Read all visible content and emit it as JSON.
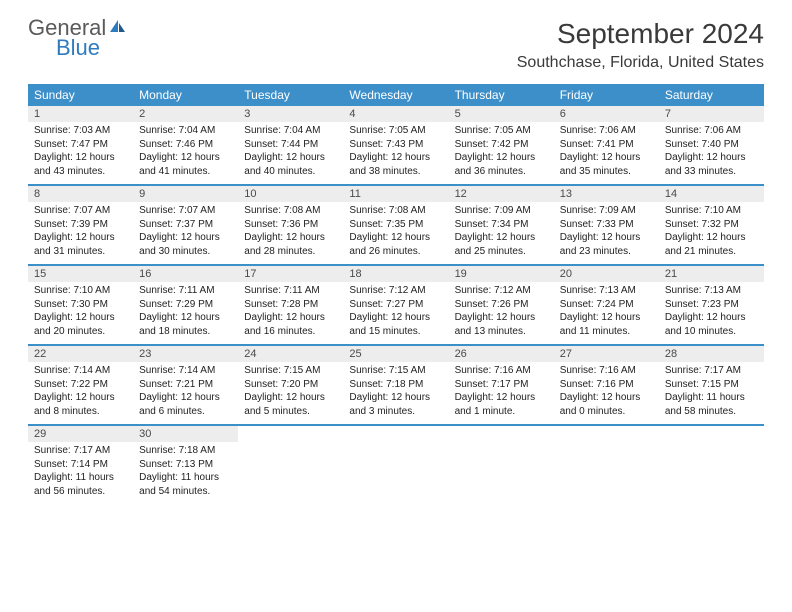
{
  "logo": {
    "general": "General",
    "blue": "Blue"
  },
  "title": "September 2024",
  "location": "Southchase, Florida, United States",
  "colors": {
    "header_bar": "#3d8fc9",
    "daynum_bg": "#ededed",
    "logo_gray": "#5a5a5a",
    "logo_blue": "#2f7bbf",
    "text": "#222222"
  },
  "dow": [
    "Sunday",
    "Monday",
    "Tuesday",
    "Wednesday",
    "Thursday",
    "Friday",
    "Saturday"
  ],
  "weeks": [
    [
      {
        "n": "1",
        "sr": "Sunrise: 7:03 AM",
        "ss": "Sunset: 7:47 PM",
        "d1": "Daylight: 12 hours",
        "d2": "and 43 minutes."
      },
      {
        "n": "2",
        "sr": "Sunrise: 7:04 AM",
        "ss": "Sunset: 7:46 PM",
        "d1": "Daylight: 12 hours",
        "d2": "and 41 minutes."
      },
      {
        "n": "3",
        "sr": "Sunrise: 7:04 AM",
        "ss": "Sunset: 7:44 PM",
        "d1": "Daylight: 12 hours",
        "d2": "and 40 minutes."
      },
      {
        "n": "4",
        "sr": "Sunrise: 7:05 AM",
        "ss": "Sunset: 7:43 PM",
        "d1": "Daylight: 12 hours",
        "d2": "and 38 minutes."
      },
      {
        "n": "5",
        "sr": "Sunrise: 7:05 AM",
        "ss": "Sunset: 7:42 PM",
        "d1": "Daylight: 12 hours",
        "d2": "and 36 minutes."
      },
      {
        "n": "6",
        "sr": "Sunrise: 7:06 AM",
        "ss": "Sunset: 7:41 PM",
        "d1": "Daylight: 12 hours",
        "d2": "and 35 minutes."
      },
      {
        "n": "7",
        "sr": "Sunrise: 7:06 AM",
        "ss": "Sunset: 7:40 PM",
        "d1": "Daylight: 12 hours",
        "d2": "and 33 minutes."
      }
    ],
    [
      {
        "n": "8",
        "sr": "Sunrise: 7:07 AM",
        "ss": "Sunset: 7:39 PM",
        "d1": "Daylight: 12 hours",
        "d2": "and 31 minutes."
      },
      {
        "n": "9",
        "sr": "Sunrise: 7:07 AM",
        "ss": "Sunset: 7:37 PM",
        "d1": "Daylight: 12 hours",
        "d2": "and 30 minutes."
      },
      {
        "n": "10",
        "sr": "Sunrise: 7:08 AM",
        "ss": "Sunset: 7:36 PM",
        "d1": "Daylight: 12 hours",
        "d2": "and 28 minutes."
      },
      {
        "n": "11",
        "sr": "Sunrise: 7:08 AM",
        "ss": "Sunset: 7:35 PM",
        "d1": "Daylight: 12 hours",
        "d2": "and 26 minutes."
      },
      {
        "n": "12",
        "sr": "Sunrise: 7:09 AM",
        "ss": "Sunset: 7:34 PM",
        "d1": "Daylight: 12 hours",
        "d2": "and 25 minutes."
      },
      {
        "n": "13",
        "sr": "Sunrise: 7:09 AM",
        "ss": "Sunset: 7:33 PM",
        "d1": "Daylight: 12 hours",
        "d2": "and 23 minutes."
      },
      {
        "n": "14",
        "sr": "Sunrise: 7:10 AM",
        "ss": "Sunset: 7:32 PM",
        "d1": "Daylight: 12 hours",
        "d2": "and 21 minutes."
      }
    ],
    [
      {
        "n": "15",
        "sr": "Sunrise: 7:10 AM",
        "ss": "Sunset: 7:30 PM",
        "d1": "Daylight: 12 hours",
        "d2": "and 20 minutes."
      },
      {
        "n": "16",
        "sr": "Sunrise: 7:11 AM",
        "ss": "Sunset: 7:29 PM",
        "d1": "Daylight: 12 hours",
        "d2": "and 18 minutes."
      },
      {
        "n": "17",
        "sr": "Sunrise: 7:11 AM",
        "ss": "Sunset: 7:28 PM",
        "d1": "Daylight: 12 hours",
        "d2": "and 16 minutes."
      },
      {
        "n": "18",
        "sr": "Sunrise: 7:12 AM",
        "ss": "Sunset: 7:27 PM",
        "d1": "Daylight: 12 hours",
        "d2": "and 15 minutes."
      },
      {
        "n": "19",
        "sr": "Sunrise: 7:12 AM",
        "ss": "Sunset: 7:26 PM",
        "d1": "Daylight: 12 hours",
        "d2": "and 13 minutes."
      },
      {
        "n": "20",
        "sr": "Sunrise: 7:13 AM",
        "ss": "Sunset: 7:24 PM",
        "d1": "Daylight: 12 hours",
        "d2": "and 11 minutes."
      },
      {
        "n": "21",
        "sr": "Sunrise: 7:13 AM",
        "ss": "Sunset: 7:23 PM",
        "d1": "Daylight: 12 hours",
        "d2": "and 10 minutes."
      }
    ],
    [
      {
        "n": "22",
        "sr": "Sunrise: 7:14 AM",
        "ss": "Sunset: 7:22 PM",
        "d1": "Daylight: 12 hours",
        "d2": "and 8 minutes."
      },
      {
        "n": "23",
        "sr": "Sunrise: 7:14 AM",
        "ss": "Sunset: 7:21 PM",
        "d1": "Daylight: 12 hours",
        "d2": "and 6 minutes."
      },
      {
        "n": "24",
        "sr": "Sunrise: 7:15 AM",
        "ss": "Sunset: 7:20 PM",
        "d1": "Daylight: 12 hours",
        "d2": "and 5 minutes."
      },
      {
        "n": "25",
        "sr": "Sunrise: 7:15 AM",
        "ss": "Sunset: 7:18 PM",
        "d1": "Daylight: 12 hours",
        "d2": "and 3 minutes."
      },
      {
        "n": "26",
        "sr": "Sunrise: 7:16 AM",
        "ss": "Sunset: 7:17 PM",
        "d1": "Daylight: 12 hours",
        "d2": "and 1 minute."
      },
      {
        "n": "27",
        "sr": "Sunrise: 7:16 AM",
        "ss": "Sunset: 7:16 PM",
        "d1": "Daylight: 12 hours",
        "d2": "and 0 minutes."
      },
      {
        "n": "28",
        "sr": "Sunrise: 7:17 AM",
        "ss": "Sunset: 7:15 PM",
        "d1": "Daylight: 11 hours",
        "d2": "and 58 minutes."
      }
    ],
    [
      {
        "n": "29",
        "sr": "Sunrise: 7:17 AM",
        "ss": "Sunset: 7:14 PM",
        "d1": "Daylight: 11 hours",
        "d2": "and 56 minutes."
      },
      {
        "n": "30",
        "sr": "Sunrise: 7:18 AM",
        "ss": "Sunset: 7:13 PM",
        "d1": "Daylight: 11 hours",
        "d2": "and 54 minutes."
      },
      null,
      null,
      null,
      null,
      null
    ]
  ]
}
